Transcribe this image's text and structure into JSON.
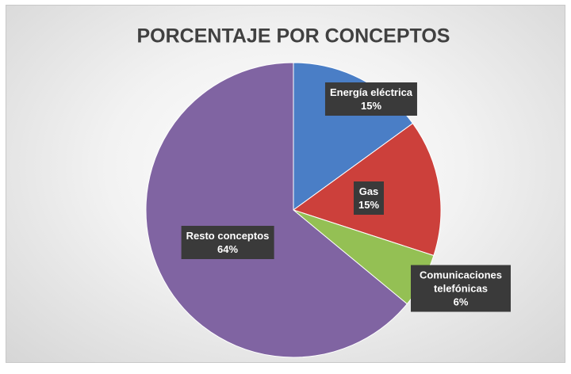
{
  "chart_data": {
    "type": "pie",
    "title": "PORCENTAJE POR CONCEPTOS",
    "categories": [
      "Energía eléctrica",
      "Gas",
      "Comunicaciones telefónicas",
      "Resto conceptos"
    ],
    "values": [
      15,
      15,
      6,
      64
    ],
    "value_labels": [
      "15%",
      "15%",
      "6%",
      "64%"
    ],
    "colors": [
      "#4a7ec6",
      "#cc403b",
      "#94c054",
      "#8064a2"
    ]
  }
}
